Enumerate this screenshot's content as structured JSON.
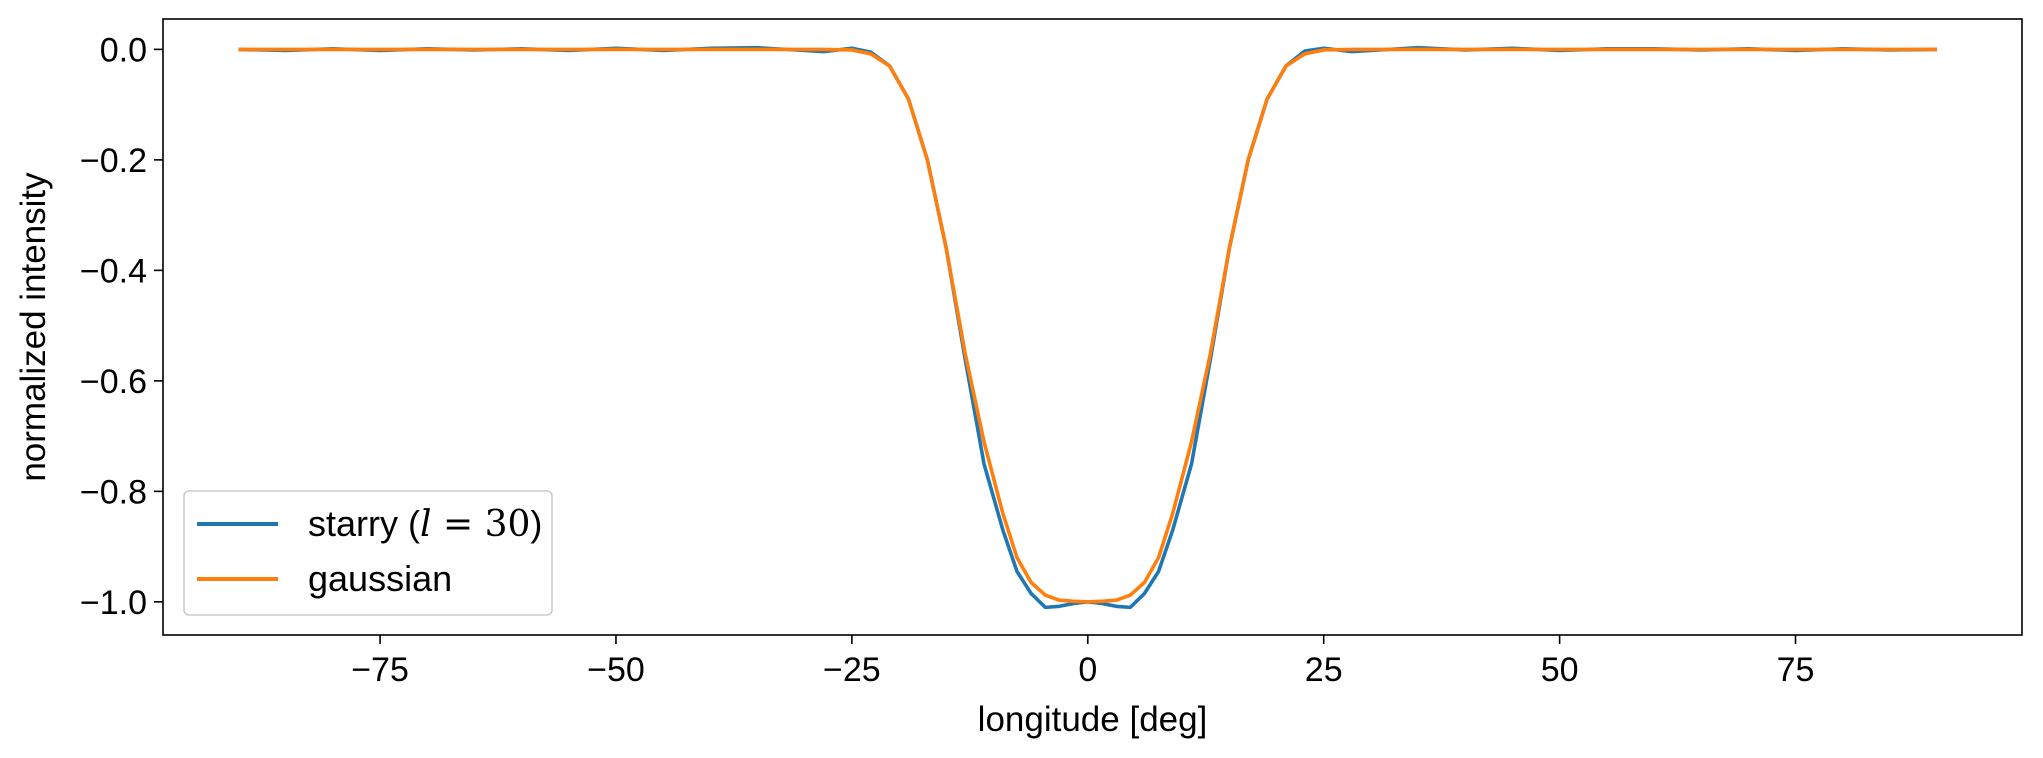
{
  "chart_data": {
    "type": "line",
    "title": "",
    "xlabel": "longitude [deg]",
    "ylabel": "normalized intensity",
    "xlim": [
      -98,
      99
    ],
    "ylim": [
      -1.06,
      0.055
    ],
    "xticks": [
      -75,
      -50,
      -25,
      0,
      25,
      50,
      75
    ],
    "xtick_labels": [
      "−75",
      "−50",
      "−25",
      "0",
      "25",
      "50",
      "75"
    ],
    "yticks": [
      0.0,
      -0.2,
      -0.4,
      -0.6,
      -0.8,
      -1.0
    ],
    "ytick_labels": [
      "0.0",
      "−0.2",
      "−0.4",
      "−0.6",
      "−0.8",
      "−1.0"
    ],
    "grid": false,
    "legend_position": "lower-left",
    "series": [
      {
        "name": "starry (l = 30)",
        "color": "#1f77b4",
        "x": [
          -90,
          -85,
          -80,
          -75,
          -70,
          -65,
          -60,
          -55,
          -50,
          -45,
          -40,
          -35,
          -32,
          -28,
          -25,
          -23,
          -21,
          -19,
          -17,
          -15,
          -13,
          -11,
          -9,
          -7.5,
          -6,
          -4.5,
          -3,
          -1.5,
          0,
          1.5,
          3,
          4.5,
          6,
          7.5,
          9,
          11,
          13,
          15,
          17,
          19,
          21,
          23,
          25,
          28,
          32,
          35,
          40,
          45,
          50,
          55,
          60,
          65,
          70,
          75,
          80,
          85,
          90
        ],
        "y": [
          0.0,
          -0.002,
          0.001,
          -0.002,
          0.001,
          -0.001,
          0.001,
          -0.002,
          0.002,
          -0.002,
          0.002,
          0.003,
          0.0,
          -0.004,
          0.002,
          -0.005,
          -0.03,
          -0.09,
          -0.2,
          -0.36,
          -0.56,
          -0.75,
          -0.87,
          -0.945,
          -0.985,
          -1.01,
          -1.008,
          -1.003,
          -1.0,
          -1.003,
          -1.008,
          -1.01,
          -0.985,
          -0.945,
          -0.87,
          -0.75,
          -0.56,
          -0.36,
          -0.2,
          -0.09,
          -0.03,
          -0.003,
          0.002,
          -0.004,
          0.0,
          0.003,
          -0.001,
          0.002,
          -0.002,
          0.001,
          0.001,
          -0.001,
          0.001,
          -0.002,
          0.001,
          -0.001,
          0.0
        ]
      },
      {
        "name": "gaussian",
        "color": "#ff7f0e",
        "x": [
          -90,
          -85,
          -80,
          -75,
          -70,
          -65,
          -60,
          -55,
          -50,
          -45,
          -40,
          -35,
          -32,
          -28,
          -25,
          -23,
          -21,
          -19,
          -17,
          -15,
          -13,
          -11,
          -9,
          -7.5,
          -6,
          -4.5,
          -3,
          -1.5,
          0,
          1.5,
          3,
          4.5,
          6,
          7.5,
          9,
          11,
          13,
          15,
          17,
          19,
          21,
          23,
          25,
          28,
          32,
          35,
          40,
          45,
          50,
          55,
          60,
          65,
          70,
          75,
          80,
          85,
          90
        ],
        "y": [
          0.0,
          0.0,
          0.0,
          0.0,
          0.0,
          0.0,
          0.0,
          0.0,
          0.0,
          0.0,
          0.0,
          0.0,
          0.0,
          0.0,
          -0.001,
          -0.008,
          -0.03,
          -0.09,
          -0.2,
          -0.36,
          -0.55,
          -0.71,
          -0.84,
          -0.92,
          -0.965,
          -0.988,
          -0.997,
          -0.999,
          -1.0,
          -0.999,
          -0.997,
          -0.988,
          -0.965,
          -0.92,
          -0.84,
          -0.71,
          -0.55,
          -0.36,
          -0.2,
          -0.09,
          -0.03,
          -0.008,
          -0.001,
          0.0,
          0.0,
          0.0,
          0.0,
          0.0,
          0.0,
          0.0,
          0.0,
          0.0,
          0.0,
          0.0,
          0.0,
          0.0,
          0.0
        ]
      }
    ]
  },
  "legend": {
    "items": [
      {
        "label": "starry (",
        "math_var": "l",
        "math_eq": " = 30",
        "label_end": ")",
        "color": "#1f77b4"
      },
      {
        "label": "gaussian",
        "color": "#ff7f0e"
      }
    ]
  }
}
